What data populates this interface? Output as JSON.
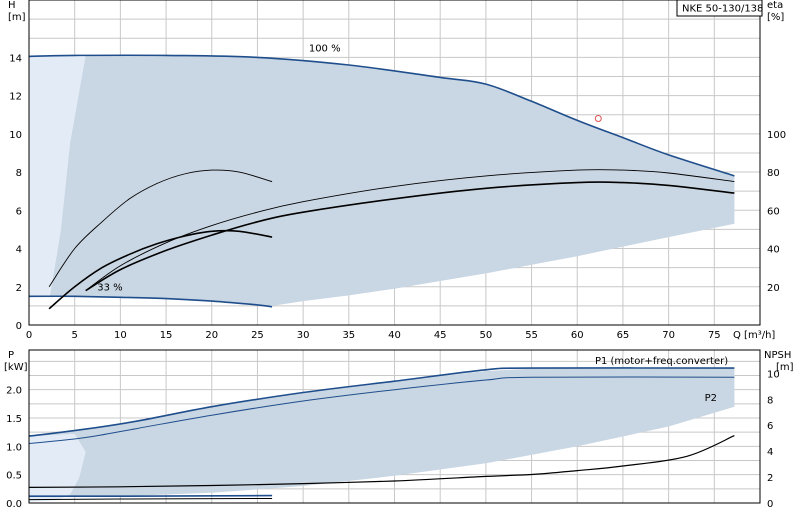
{
  "product_label": "NKE 50-130/138",
  "colors": {
    "envelope_fill": "#c9d6e3",
    "envelope_light_fill": "#e3ecf6",
    "curve_blue": "#1f4e8c",
    "curve_black": "#000000",
    "marker_red": "#e05050",
    "grid": "#c8c8c8",
    "label_blue": "#1f4e8c"
  },
  "chart_data": [
    {
      "type": "line",
      "panel": "top",
      "left_axis_label": [
        "H",
        "[m]"
      ],
      "right_axis_label": [
        "eta",
        "[%]"
      ],
      "x_axis_label": "Q [m³/h]",
      "xlim": [
        0,
        80
      ],
      "ylim_left": [
        0,
        17
      ],
      "ylim_right": [
        0,
        170
      ],
      "x_ticks": [
        0,
        5,
        10,
        15,
        20,
        25,
        30,
        35,
        40,
        45,
        50,
        55,
        60,
        65,
        70,
        75
      ],
      "y_ticks_left": [
        0,
        2,
        4,
        6,
        8,
        10,
        12,
        14
      ],
      "y_ticks_right": [
        20,
        40,
        60,
        80,
        100
      ],
      "annotations": [
        {
          "text": "100 %",
          "x": 31.5,
          "y": 14.3
        },
        {
          "text": "33 %",
          "x": 9,
          "y": 1.9
        }
      ],
      "operating_point": {
        "x": 62.3,
        "y": 10.8
      },
      "envelope": [
        [
          0,
          14.05
        ],
        [
          5,
          14.1
        ],
        [
          15,
          14.1
        ],
        [
          25,
          14.0
        ],
        [
          35,
          13.6
        ],
        [
          45,
          12.95
        ],
        [
          50,
          12.6
        ],
        [
          55,
          11.7
        ],
        [
          60,
          10.7
        ],
        [
          65,
          9.8
        ],
        [
          70,
          8.9
        ],
        [
          77.2,
          7.8
        ],
        [
          77.2,
          5.3
        ],
        [
          70,
          4.6
        ],
        [
          65,
          4.1
        ],
        [
          60,
          3.6
        ],
        [
          55,
          3.15
        ],
        [
          50,
          2.7
        ],
        [
          45,
          2.3
        ],
        [
          40,
          1.9
        ],
        [
          35,
          1.55
        ],
        [
          30,
          1.25
        ],
        [
          26.6,
          1.0
        ],
        [
          20,
          1.25
        ],
        [
          10,
          1.45
        ],
        [
          5,
          1.5
        ],
        [
          0,
          1.5
        ]
      ],
      "envelope_light": [
        [
          0,
          14.05
        ],
        [
          6.2,
          14.1
        ],
        [
          4.5,
          9.5
        ],
        [
          3.5,
          5.0
        ],
        [
          2.3,
          1.5
        ],
        [
          0,
          1.5
        ]
      ],
      "series": [
        {
          "name": "100 %",
          "role": "head_max",
          "points": [
            [
              0,
              14.05
            ],
            [
              5,
              14.1
            ],
            [
              15,
              14.1
            ],
            [
              25,
              14.0
            ],
            [
              35,
              13.6
            ],
            [
              45,
              12.95
            ],
            [
              50,
              12.6
            ],
            [
              55,
              11.7
            ],
            [
              60,
              10.7
            ],
            [
              65,
              9.8
            ],
            [
              70,
              8.9
            ],
            [
              77.2,
              7.8
            ]
          ]
        },
        {
          "name": "33 %",
          "role": "head_min",
          "points": [
            [
              0,
              1.5
            ],
            [
              5,
              1.5
            ],
            [
              10,
              1.45
            ],
            [
              15,
              1.38
            ],
            [
              20,
              1.25
            ],
            [
              25,
              1.05
            ],
            [
              26.6,
              0.95
            ]
          ]
        },
        {
          "name": "",
          "role": "eta_thin",
          "points": [
            [
              2.2,
              2.0
            ],
            [
              5,
              4.0
            ],
            [
              8,
              5.4
            ],
            [
              11,
              6.6
            ],
            [
              14,
              7.4
            ],
            [
              17,
              7.9
            ],
            [
              20,
              8.1
            ],
            [
              23,
              8.0
            ],
            [
              26.6,
              7.5
            ]
          ]
        },
        {
          "name": "",
          "role": "eta_mid",
          "points": [
            [
              2.2,
              0.85
            ],
            [
              5,
              2.0
            ],
            [
              8,
              3.0
            ],
            [
              11,
              3.7
            ],
            [
              14,
              4.25
            ],
            [
              17,
              4.65
            ],
            [
              20,
              4.9
            ],
            [
              23,
              4.9
            ],
            [
              26.6,
              4.6
            ]
          ]
        },
        {
          "name": "",
          "role": "eta_env_lower",
          "points": [
            [
              6.2,
              1.8
            ],
            [
              10,
              2.9
            ],
            [
              15,
              3.9
            ],
            [
              20,
              4.7
            ],
            [
              25,
              5.4
            ],
            [
              30,
              5.9
            ],
            [
              40,
              6.6
            ],
            [
              50,
              7.15
            ],
            [
              60,
              7.45
            ],
            [
              65,
              7.45
            ],
            [
              70,
              7.3
            ],
            [
              77.2,
              6.9
            ]
          ]
        },
        {
          "name": "",
          "role": "eta_env_upper",
          "points": [
            [
              6.2,
              1.8
            ],
            [
              10,
              3.1
            ],
            [
              15,
              4.3
            ],
            [
              20,
              5.2
            ],
            [
              25,
              5.9
            ],
            [
              30,
              6.45
            ],
            [
              40,
              7.25
            ],
            [
              50,
              7.8
            ],
            [
              60,
              8.1
            ],
            [
              65,
              8.1
            ],
            [
              70,
              7.95
            ],
            [
              77.2,
              7.5
            ]
          ]
        }
      ]
    },
    {
      "type": "line",
      "panel": "bottom",
      "left_axis_label": [
        "P",
        "[kW]"
      ],
      "right_axis_label": [
        "NPSH",
        "[m]"
      ],
      "xlim": [
        0,
        80
      ],
      "ylim_left": [
        0,
        2.7
      ],
      "ylim_right": [
        0,
        11.8
      ],
      "y_ticks_left": [
        "0.0",
        "0.5",
        "1.0",
        "1.5",
        "2.0"
      ],
      "y_ticks_right": [
        0,
        2,
        4,
        6,
        8,
        10
      ],
      "annotations": [
        {
          "text": "P1 (motor+freq.converter)",
          "x": 61.5,
          "y": 2.52
        },
        {
          "text": "P2",
          "x": 73.5,
          "y": 1.98
        }
      ],
      "envelope": [
        [
          0,
          1.18
        ],
        [
          6,
          1.3
        ],
        [
          12,
          1.45
        ],
        [
          20,
          1.7
        ],
        [
          30,
          1.95
        ],
        [
          40,
          2.15
        ],
        [
          50,
          2.33
        ],
        [
          55,
          2.37
        ],
        [
          77.2,
          2.37
        ],
        [
          77.2,
          1.7
        ],
        [
          70,
          1.35
        ],
        [
          60,
          1.0
        ],
        [
          50,
          0.7
        ],
        [
          40,
          0.48
        ],
        [
          30,
          0.3
        ],
        [
          20,
          0.18
        ],
        [
          10,
          0.12
        ],
        [
          0,
          0.1
        ]
      ],
      "envelope_light": [
        [
          0,
          0.1
        ],
        [
          0,
          1.18
        ],
        [
          5,
          1.22
        ],
        [
          6.2,
          0.9
        ],
        [
          5.5,
          0.45
        ],
        [
          4.5,
          0.15
        ],
        [
          3,
          0.05
        ],
        [
          0,
          0.02
        ]
      ],
      "series": [
        {
          "name": "P1 (motor+freq.converter)",
          "role": "p1",
          "points": [
            [
              0,
              1.18
            ],
            [
              6,
              1.3
            ],
            [
              12,
              1.45
            ],
            [
              20,
              1.7
            ],
            [
              30,
              1.95
            ],
            [
              40,
              2.15
            ],
            [
              50,
              2.35
            ],
            [
              55,
              2.38
            ],
            [
              77.2,
              2.38
            ]
          ]
        },
        {
          "name": "P2",
          "role": "p2",
          "points": [
            [
              0,
              1.05
            ],
            [
              6,
              1.15
            ],
            [
              12,
              1.32
            ],
            [
              20,
              1.55
            ],
            [
              30,
              1.8
            ],
            [
              40,
              2.0
            ],
            [
              50,
              2.17
            ],
            [
              55,
              2.22
            ],
            [
              77.2,
              2.22
            ]
          ]
        },
        {
          "name": "",
          "role": "p_min_1",
          "points": [
            [
              0,
              0.12
            ],
            [
              10,
              0.12
            ],
            [
              26.6,
              0.13
            ]
          ]
        },
        {
          "name": "",
          "role": "p_min_2",
          "points": [
            [
              0,
              0.06
            ],
            [
              10,
              0.07
            ],
            [
              26.6,
              0.08
            ]
          ]
        },
        {
          "name": "",
          "role": "npsh",
          "axis": "right",
          "points": [
            [
              0,
              1.2
            ],
            [
              10,
              1.25
            ],
            [
              20,
              1.35
            ],
            [
              30,
              1.5
            ],
            [
              40,
              1.7
            ],
            [
              50,
              2.05
            ],
            [
              55,
              2.2
            ],
            [
              60,
              2.5
            ],
            [
              65,
              2.85
            ],
            [
              72,
              3.6
            ],
            [
              77.2,
              5.2
            ]
          ]
        }
      ]
    }
  ]
}
